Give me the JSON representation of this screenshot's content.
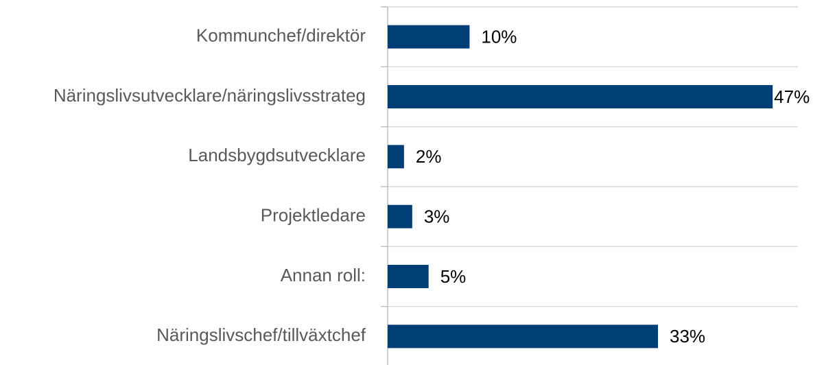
{
  "chart_data": {
    "type": "bar",
    "orientation": "horizontal",
    "categories": [
      "Kommunchef/direktör",
      "Näringslivsutvecklare/näringslivsstrateg",
      "Landsbygdsutvecklare",
      "Projektledare",
      "Annan roll:",
      "Näringslivschef/tillväxtchef"
    ],
    "values": [
      10,
      47,
      2,
      3,
      5,
      33
    ],
    "value_labels": [
      "10%",
      "47%",
      "2%",
      "3%",
      "5%",
      "33%"
    ],
    "color": "#003f75",
    "grid": true
  }
}
